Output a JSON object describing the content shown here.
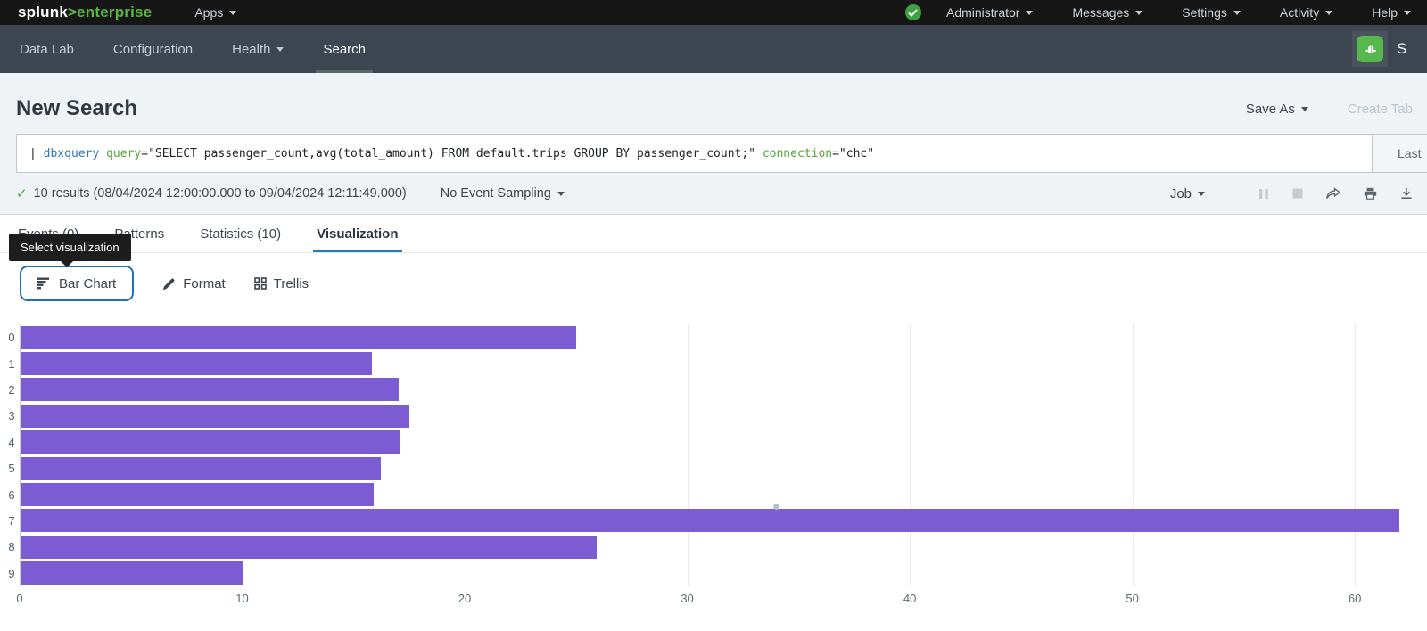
{
  "topbar": {
    "logo": {
      "brand": "splunk",
      "gt": ">",
      "product": "enterprise"
    },
    "apps_label": "Apps",
    "menus": [
      {
        "label": "Administrator"
      },
      {
        "label": "Messages"
      },
      {
        "label": "Settings"
      },
      {
        "label": "Activity"
      },
      {
        "label": "Help"
      }
    ]
  },
  "navbar": {
    "items": [
      {
        "label": "Data Lab"
      },
      {
        "label": "Configuration"
      },
      {
        "label": "Health"
      },
      {
        "label": "Search"
      }
    ],
    "app_name_visible": "S"
  },
  "header": {
    "title": "New Search",
    "save_as_label": "Save As",
    "create_table_label": "Create Tab"
  },
  "search": {
    "query_segments": [
      {
        "t": "| ",
        "k": "plain"
      },
      {
        "t": "dbxquery",
        "k": "command"
      },
      {
        "t": " ",
        "k": "plain"
      },
      {
        "t": "query",
        "k": "param"
      },
      {
        "t": "=\"SELECT passenger_count,avg(total_amount) FROM default.trips GROUP BY passenger_count;\"",
        "k": "plain"
      },
      {
        "t": " ",
        "k": "plain"
      },
      {
        "t": "connection",
        "k": "param"
      },
      {
        "t": "=\"chc\"",
        "k": "plain"
      }
    ],
    "time_range_visible": "Last"
  },
  "results": {
    "check": "✓",
    "summary": "10 results (08/04/2024 12:00:00.000 to 09/04/2024 12:11:49.000)",
    "sampling_label": "No Event Sampling",
    "job_label": "Job"
  },
  "tabs": [
    {
      "label": "Events (0)"
    },
    {
      "label": "Patterns"
    },
    {
      "label": "Statistics (10)"
    },
    {
      "label": "Visualization",
      "active": true
    }
  ],
  "tooltip_text": "Select visualization",
  "viz_controls": {
    "chart_type_label": "Bar Chart",
    "format_label": "Format",
    "trellis_label": "Trellis"
  },
  "chart_data": {
    "type": "bar",
    "orientation": "horizontal",
    "categories": [
      "0",
      "1",
      "2",
      "3",
      "4",
      "5",
      "6",
      "7",
      "8",
      "9"
    ],
    "values": [
      25.0,
      15.8,
      17.0,
      17.5,
      17.1,
      16.2,
      15.9,
      62.0,
      25.9,
      10.0
    ],
    "x_ticks": [
      0,
      10,
      20,
      30,
      40,
      50,
      60
    ],
    "xlim": [
      0,
      62.6
    ],
    "grid": true,
    "bar_color": "#7B5CD3"
  },
  "colors": {
    "accent_blue": "#1f7bbf",
    "splunk_green": "#5cb445",
    "bar_purple": "#7B5CD3",
    "status_green": "#3fa142"
  }
}
